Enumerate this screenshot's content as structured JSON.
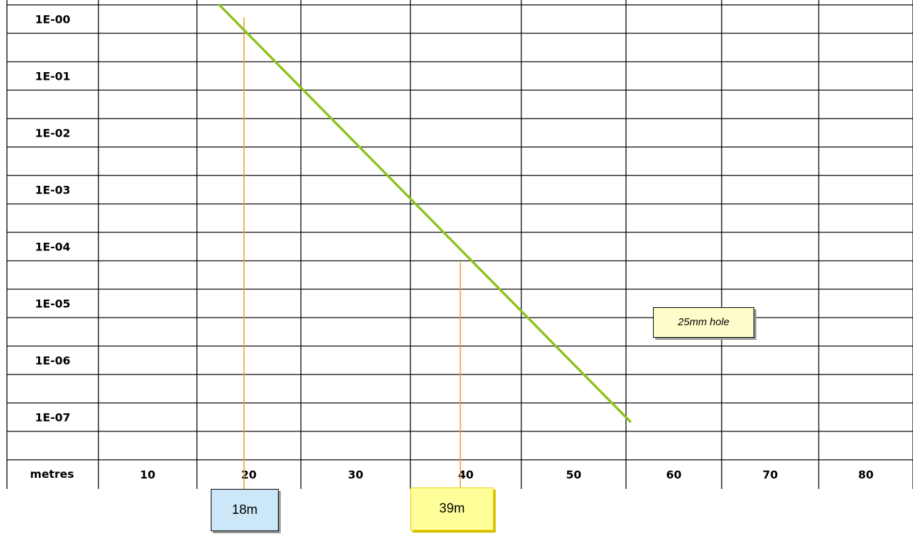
{
  "chart_data": {
    "type": "line",
    "y_scale": "log",
    "x_axis_label": "metres",
    "x_tick_labels": [
      "10",
      "20",
      "30",
      "40",
      "50",
      "60",
      "70",
      "80"
    ],
    "y_tick_labels": [
      "1E-00",
      "1E-01",
      "1E-02",
      "1E-03",
      "1E-04",
      "1E-05",
      "1E-06",
      "1E-07"
    ],
    "series": [
      {
        "name": "25mm hole",
        "color": "#8dc21f",
        "x": [
          15.6,
          55.5
        ],
        "y": [
          1.0,
          5.2e-08
        ]
      }
    ],
    "markers": [
      {
        "label": "18m",
        "x": 18,
        "y": 0.6,
        "color": "#f0a030"
      },
      {
        "label": "39m",
        "x": 39,
        "y": 3.2e-05,
        "color": "#f0a030"
      }
    ],
    "grid": true
  }
}
